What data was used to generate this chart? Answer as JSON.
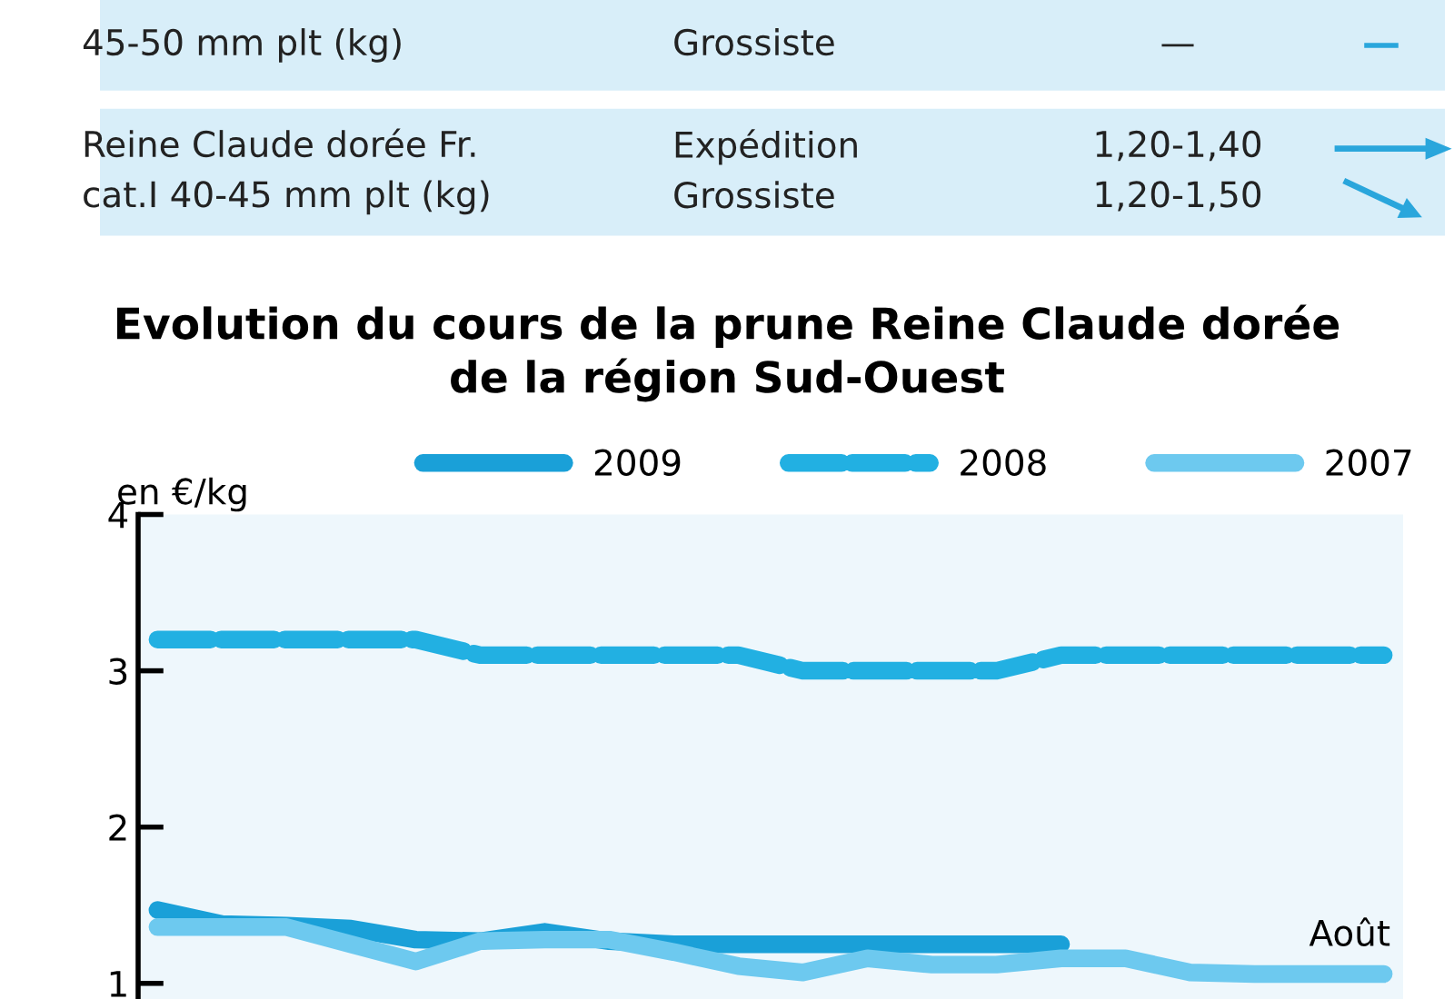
{
  "chart_data": [
    {
      "type": "other",
      "annotations": [
        "45-50 mm plt (kg)",
        "Grossiste",
        "—",
        "Reine Claude dorée Fr.\ncat.I 40-45 mm plt (kg)",
        "Expédition\nGrossiste",
        "1,20-1,40\n1,20-1,50"
      ]
    },
    {
      "type": "line",
      "title": "Evolution du cours de la prune Reine Claude dorée\nde la région Sud-Ouest",
      "ylabel": "en €/kg",
      "categories": [
        null,
        null,
        null,
        null,
        null,
        null,
        null,
        null,
        null,
        null,
        null,
        null,
        null,
        null,
        null,
        null,
        null,
        null,
        null,
        null
      ],
      "series": [
        {
          "name": "2009",
          "color": "#1aa0d8",
          "line_style": "solid",
          "values": [
            1.47,
            1.38,
            1.37,
            1.35,
            1.28,
            1.27,
            1.33,
            1.27,
            1.25,
            1.25,
            1.25,
            1.25,
            1.25,
            1.25,
            1.25,
            null,
            null,
            null,
            null,
            null
          ]
        },
        {
          "name": "2008",
          "color": "#22b0e2",
          "line_style": "dashed",
          "values": [
            3.2,
            3.2,
            3.2,
            3.2,
            3.2,
            3.1,
            3.1,
            3.1,
            3.1,
            3.1,
            3.0,
            3.0,
            3.0,
            3.0,
            3.1,
            3.1,
            3.1,
            3.1,
            3.1,
            3.1
          ]
        },
        {
          "name": "2007",
          "color": "#6dc9ef",
          "line_style": "solid",
          "values": [
            1.36,
            1.36,
            1.36,
            1.25,
            1.14,
            1.27,
            1.28,
            1.28,
            1.2,
            1.11,
            1.07,
            1.16,
            1.12,
            1.12,
            1.16,
            1.16,
            1.07,
            1.06,
            1.06,
            1.06
          ]
        }
      ],
      "ylim": [
        0.9,
        4
      ],
      "yticks": [
        1,
        2,
        3,
        4
      ],
      "grid": false,
      "legend": "top",
      "tick_labels": "y",
      "annotations": [
        "Août"
      ]
    }
  ]
}
